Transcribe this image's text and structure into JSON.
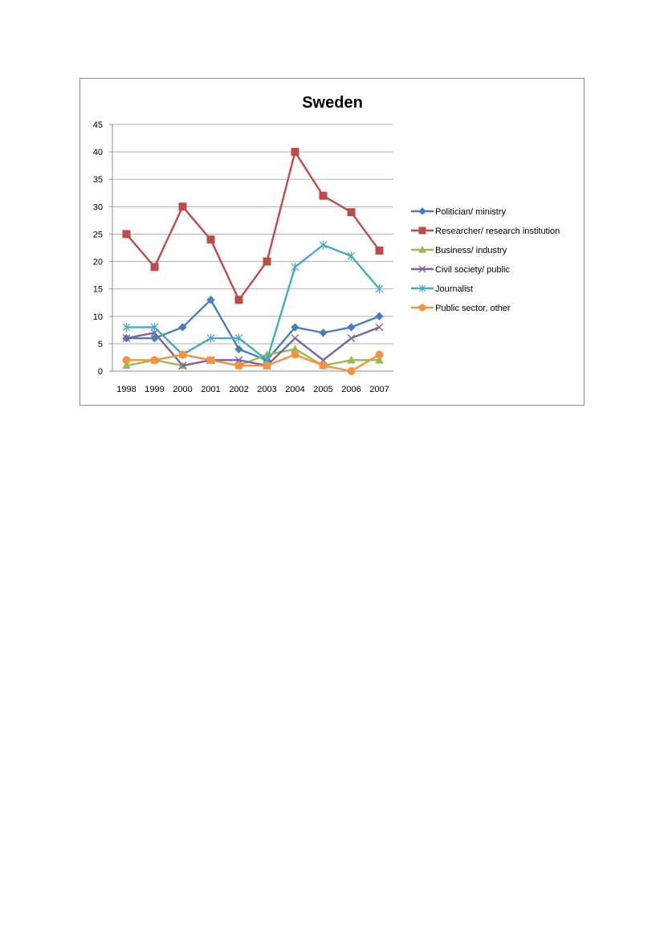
{
  "chart_data": {
    "type": "line",
    "title": "Sweden",
    "xlabel": "",
    "ylabel": "",
    "categories": [
      "1998",
      "1999",
      "2000",
      "2001",
      "2002",
      "2003",
      "2004",
      "2005",
      "2006",
      "2007"
    ],
    "ylim": [
      0,
      45
    ],
    "yticks": [
      0,
      5,
      10,
      15,
      20,
      25,
      30,
      35,
      40,
      45
    ],
    "grid": "horizontal",
    "legend_position": "right",
    "series": [
      {
        "name": "Politician/ ministry",
        "color": "#4a7ebb",
        "marker": "diamond",
        "values": [
          6,
          6,
          8,
          13,
          4,
          2,
          8,
          7,
          8,
          10
        ]
      },
      {
        "name": "Researcher/ research institution",
        "color": "#be4b48",
        "marker": "square",
        "values": [
          25,
          19,
          30,
          24,
          13,
          20,
          40,
          32,
          29,
          22
        ]
      },
      {
        "name": "Business/ industry",
        "color": "#98b954",
        "marker": "triangle",
        "values": [
          1,
          2,
          1,
          2,
          1,
          3,
          4,
          1,
          2,
          2
        ]
      },
      {
        "name": "Civil society/ public",
        "color": "#7d60a0",
        "marker": "x",
        "values": [
          6,
          7,
          1,
          2,
          2,
          1,
          6,
          2,
          6,
          8
        ]
      },
      {
        "name": "Journalist",
        "color": "#46aac4",
        "marker": "star",
        "values": [
          8,
          8,
          3,
          6,
          6,
          2,
          19,
          23,
          21,
          15
        ]
      },
      {
        "name": "Public sector, other",
        "color": "#f69240",
        "marker": "circle",
        "values": [
          2,
          2,
          3,
          2,
          1,
          1,
          3,
          1,
          0,
          3
        ]
      }
    ]
  }
}
